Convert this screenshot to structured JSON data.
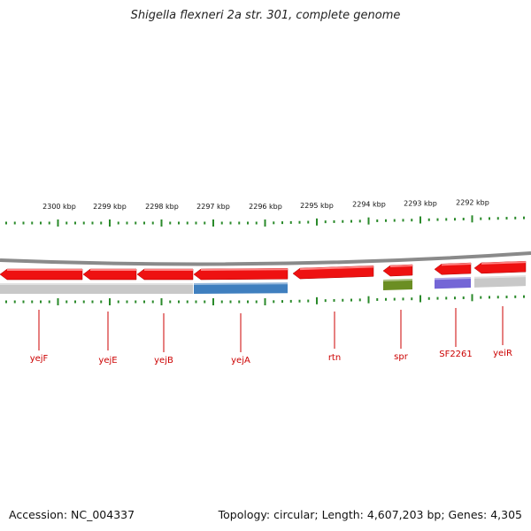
{
  "title": "Shigella flexneri 2a str. 301, complete genome",
  "footer": {
    "accession": "Accession: NC_004337",
    "summary": "Topology: circular; Length: 4,607,203 bp; Genes: 4,305"
  },
  "ruler": {
    "ticks": [
      "2300 kbp",
      "2299 kbp",
      "2298 kbp",
      "2297 kbp",
      "2296 kbp",
      "2295 kbp",
      "2294 kbp",
      "2293 kbp",
      "2292 kbp"
    ],
    "tick_color": "#2a8a2a"
  },
  "colors": {
    "gene": "#ee1111",
    "gene_label": "#cc0000",
    "backbone": "#8a8a8a",
    "cds_default": "#c8c8c8",
    "cds_blue": "#3f7fbf",
    "cds_green": "#6b8e23",
    "cds_purple": "#7466d6"
  },
  "genes": [
    {
      "label": "yejF",
      "strand": "reverse"
    },
    {
      "label": "yejE",
      "strand": "reverse"
    },
    {
      "label": "yejB",
      "strand": "reverse"
    },
    {
      "label": "yejA",
      "strand": "reverse"
    },
    {
      "label": "rtn",
      "strand": "reverse"
    },
    {
      "label": "spr",
      "strand": "reverse"
    },
    {
      "label": "SF2261",
      "strand": "reverse"
    },
    {
      "label": "yeiR",
      "strand": "reverse"
    }
  ]
}
